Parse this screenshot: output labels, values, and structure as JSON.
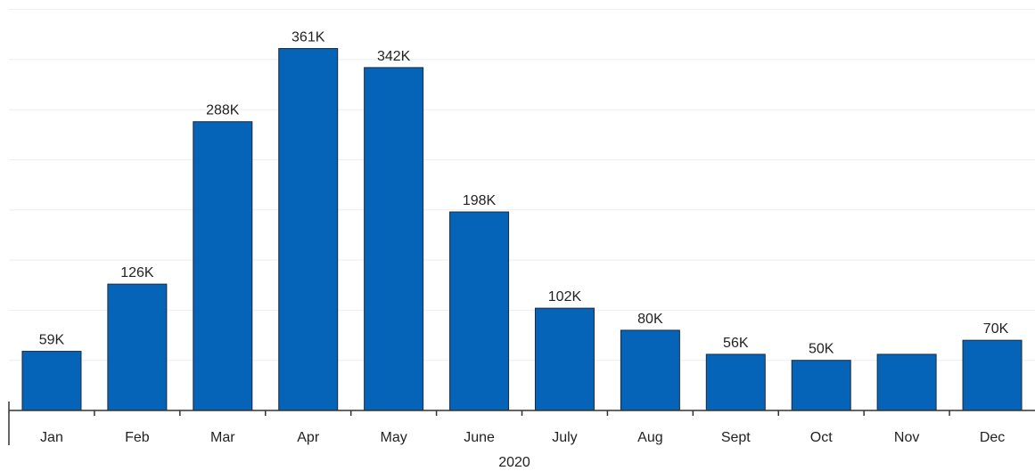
{
  "chart_data": {
    "type": "bar",
    "categories": [
      "Jan",
      "Feb",
      "Mar",
      "Apr",
      "May",
      "June",
      "July",
      "Aug",
      "Sept",
      "Oct",
      "Nov",
      "Dec"
    ],
    "values": [
      59000,
      126000,
      288000,
      361000,
      342000,
      198000,
      102000,
      80000,
      56000,
      50000,
      56000,
      70000
    ],
    "data_labels": [
      "59K",
      "126K",
      "288K",
      "361K",
      "342K",
      "198K",
      "102K",
      "80K",
      "56K",
      "50K",
      "",
      "70K"
    ],
    "xlabel": "2020",
    "ylabel": "",
    "ylim": [
      0,
      400000
    ],
    "grid": true,
    "legend": "none",
    "bar_color": "#0563b8"
  }
}
